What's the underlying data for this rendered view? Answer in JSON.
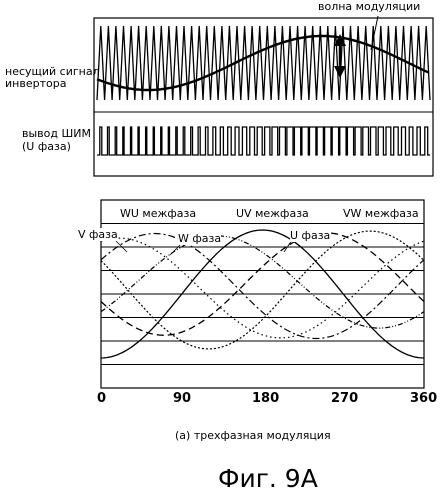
{
  "top_panel": {
    "modulation_wave_label": "волна модуляции",
    "carrier_label": "несущий сигнал\nинвертора",
    "pwm_label": "вывод ШИМ\n(U фаза)"
  },
  "bottom_panel": {
    "labels": {
      "wu": "WU межфаза",
      "uv": "UV межфаза",
      "vw": "VW межфаза",
      "v": "V фаза",
      "w": "W фаза",
      "u": "U фаза"
    },
    "x_ticks": [
      "0",
      "90",
      "180",
      "270",
      "360"
    ],
    "caption": "(a) трехфазная модуляция"
  },
  "figure_title": "Фиг. 9A"
}
